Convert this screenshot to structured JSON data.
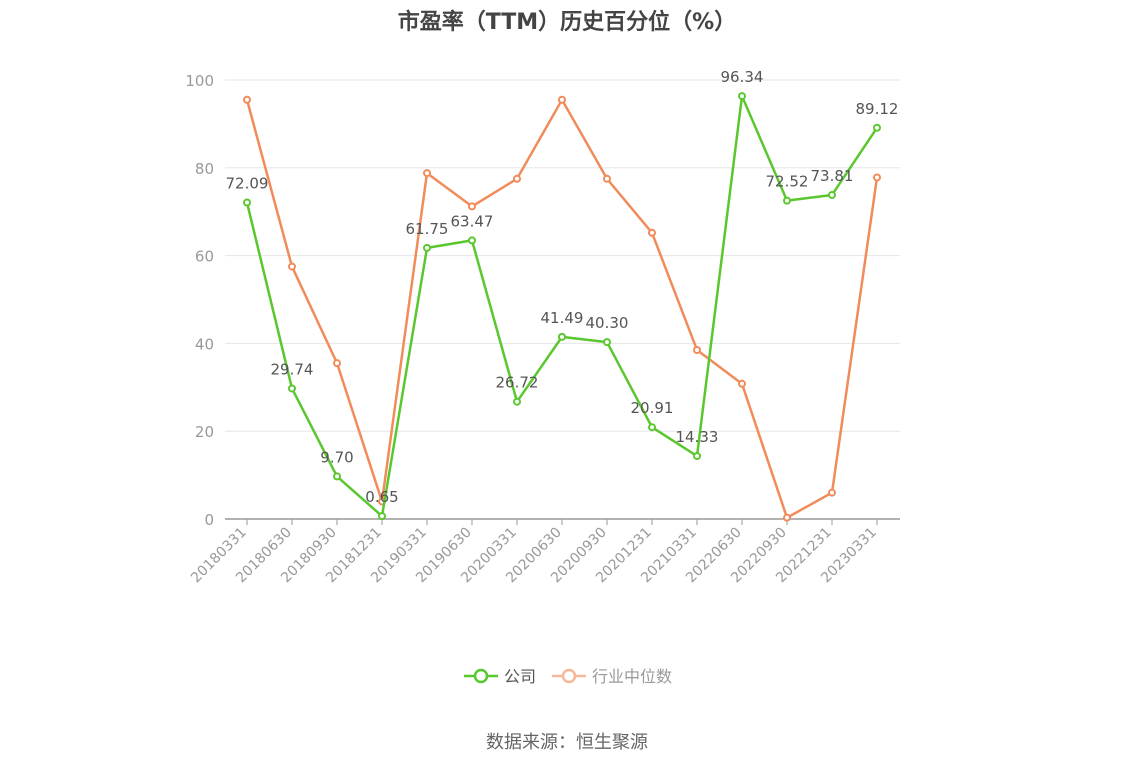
{
  "page": {
    "source_note": "数据来源：恒生聚源"
  },
  "colors": {
    "company": "#5ac72f",
    "industry": "#f28b5a",
    "industry_legend": "#f7b89a",
    "grid": "#e6e6ea",
    "axis": "#999999",
    "tick_text": "#999999",
    "label_text": "#555555"
  },
  "chart_data": {
    "type": "line",
    "title": "市盈率（TTM）历史百分位（%）",
    "xlabel": "",
    "ylabel": "",
    "ylim": [
      0,
      100
    ],
    "yticks": [
      0,
      20,
      40,
      60,
      80,
      100
    ],
    "grid": true,
    "legend_position": "bottom",
    "categories": [
      "20180331",
      "20180630",
      "20180930",
      "20181231",
      "20190331",
      "20190630",
      "20200331",
      "20200630",
      "20200930",
      "20201231",
      "20210331",
      "20220630",
      "20220930",
      "20221231",
      "20230331"
    ],
    "series": [
      {
        "name": "公司",
        "color_key": "company",
        "show_labels": true,
        "values": [
          72.09,
          29.74,
          9.7,
          0.65,
          61.75,
          63.47,
          26.72,
          41.49,
          40.3,
          20.91,
          14.33,
          96.34,
          72.52,
          73.81,
          89.12
        ],
        "labels": [
          "72.09",
          "29.74",
          "9.70",
          "0.65",
          "61.75",
          "63.47",
          "26.72",
          "41.49",
          "40.30",
          "20.91",
          "14.33",
          "96.34",
          "72.52",
          "73.81",
          "89.12"
        ]
      },
      {
        "name": "行业中位数",
        "color_key": "industry",
        "show_labels": false,
        "values": [
          95.5,
          57.5,
          35.5,
          4.0,
          78.8,
          71.2,
          77.5,
          95.5,
          77.5,
          65.2,
          38.5,
          30.8,
          0.3,
          6.0,
          77.8
        ]
      }
    ]
  }
}
